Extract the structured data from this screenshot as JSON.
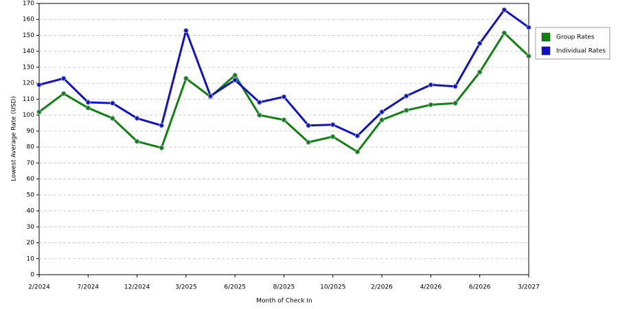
{
  "chart_data": {
    "type": "line",
    "x_label": "Month of Check In",
    "y_label": "Lowest Average Rate (USD)",
    "categories": [
      "2/2024",
      null,
      "7/2024",
      null,
      "12/2024",
      null,
      "3/2025",
      null,
      "6/2025",
      null,
      "8/2025",
      null,
      "10/2025",
      null,
      "2/2026",
      null,
      "4/2026",
      null,
      "6/2026",
      null,
      "3/2027"
    ],
    "series": [
      {
        "name": "Group Rates",
        "color": "#108010",
        "values": [
          102,
          113.5,
          104.5,
          98,
          83.5,
          79.5,
          123,
          111.5,
          125,
          100,
          97,
          83,
          86.5,
          77,
          97,
          103,
          106.5,
          107.5,
          127,
          151.5,
          137
        ]
      },
      {
        "name": "Individual Rates",
        "color": "#1010c8",
        "values": [
          119,
          123,
          108,
          107.5,
          98,
          93.5,
          153,
          112,
          122,
          108,
          111.5,
          93.5,
          94,
          87,
          102,
          112,
          119,
          118,
          145,
          166,
          155
        ]
      }
    ],
    "ylim": [
      0,
      170
    ],
    "yticks": [
      0,
      10,
      20,
      30,
      40,
      50,
      60,
      70,
      80,
      90,
      100,
      110,
      120,
      130,
      140,
      150,
      160,
      170
    ],
    "grid": true,
    "legend": "right"
  }
}
